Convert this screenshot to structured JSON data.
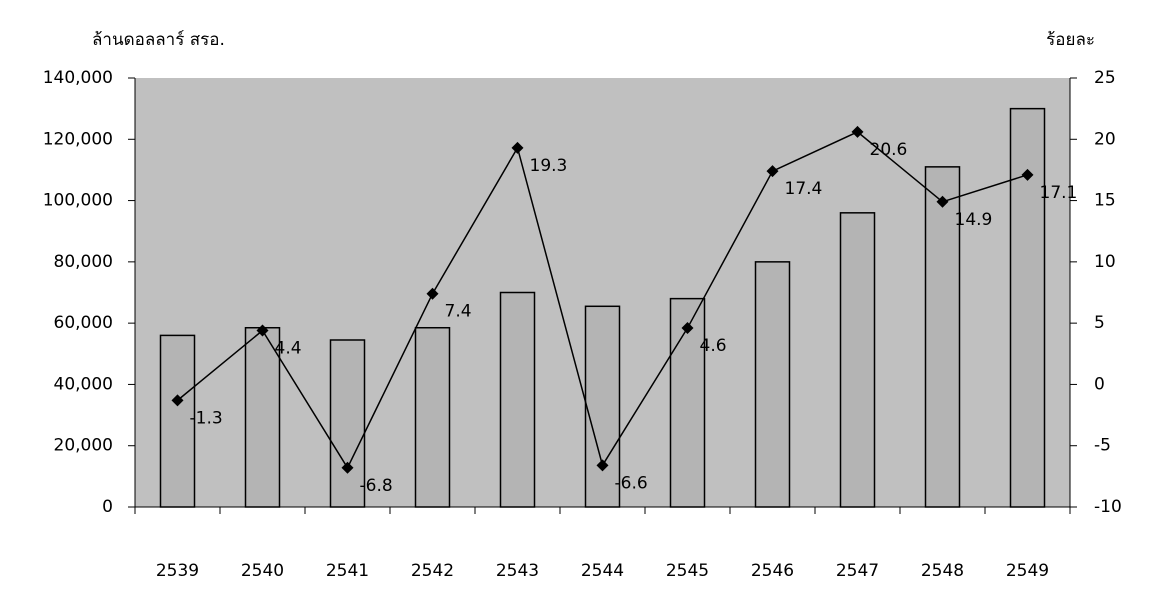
{
  "chart_data": {
    "type": "bar",
    "y_label": "ล้านดอลลาร์ สรอ.",
    "y2_label": "ร้อยละ",
    "categories": [
      "2539",
      "2540",
      "2541",
      "2542",
      "2543",
      "2544",
      "2545",
      "2546",
      "2547",
      "2548",
      "2549"
    ],
    "series": [
      {
        "type": "bar",
        "color": "#b4b4b4",
        "values": [
          56000,
          58500,
          54500,
          58500,
          70000,
          65500,
          68000,
          80000,
          96000,
          111000,
          130000
        ]
      },
      {
        "type": "line",
        "axis": "y2",
        "color": "#000000",
        "values": [
          -1.3,
          4.4,
          -6.8,
          7.4,
          19.3,
          -6.6,
          4.6,
          17.4,
          20.6,
          14.9,
          17.1
        ]
      }
    ],
    "ylim": [
      0,
      140000
    ],
    "yticks": [
      0,
      {
        "value": 20000,
        "label": "20,000"
      },
      {
        "value": 40000,
        "label": "40,000"
      },
      {
        "value": 60000,
        "label": "60,000"
      },
      {
        "value": 80000,
        "label": "80,000"
      },
      {
        "value": 100000,
        "label": "100,000"
      },
      {
        "value": 120000,
        "label": "120,000"
      },
      {
        "value": 140000,
        "label": "140,000"
      }
    ],
    "y2lim": [
      -10,
      25
    ],
    "y2ticks": [
      -10,
      -5,
      0,
      5,
      10,
      15,
      20,
      25
    ],
    "plot_background": "#c0c0c0"
  }
}
